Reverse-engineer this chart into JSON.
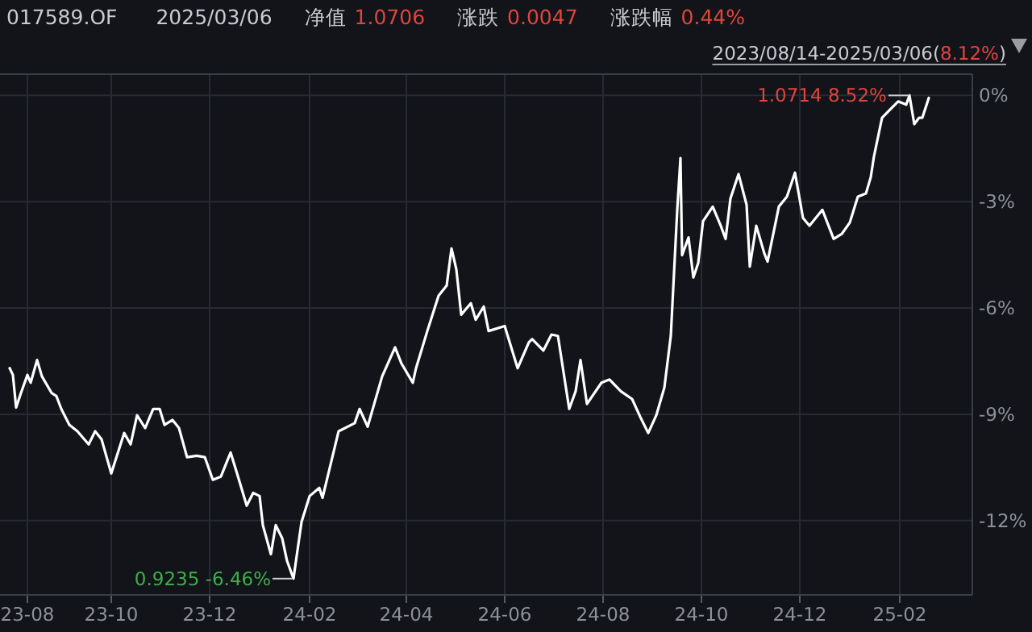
{
  "chart_data": {
    "type": "line",
    "title": "017589.OF",
    "annotations": [
      "2025/03/06",
      "净值",
      "1.0706",
      "涨跌",
      "0.0047",
      "涨跌幅",
      "0.44%",
      "2023/08/14-2025/03/06(",
      "8.12%",
      ")",
      {
        "text": "1.0714 8.52%",
        "x": "2025-02-22",
        "y": 0
      },
      {
        "text": "0.9235 -6.46%",
        "x": "2024-02-06",
        "y": -13.64
      }
    ],
    "x": [
      "2023-08-14",
      "2023-08-16",
      "2023-08-18",
      "2023-08-21",
      "2023-08-25",
      "2023-08-27",
      "2023-08-31",
      "2023-09-03",
      "2023-09-09",
      "2023-09-12",
      "2023-09-15",
      "2023-09-20",
      "2023-09-25",
      "2023-10-02",
      "2023-10-06",
      "2023-10-10",
      "2023-10-16",
      "2023-10-24",
      "2023-10-28",
      "2023-11-01",
      "2023-11-06",
      "2023-11-11",
      "2023-11-15",
      "2023-11-18",
      "2023-11-23",
      "2023-11-27",
      "2023-12-02",
      "2023-12-08",
      "2023-12-13",
      "2023-12-18",
      "2023-12-23",
      "2023-12-29",
      "2024-01-02",
      "2024-01-08",
      "2024-01-12",
      "2024-01-16",
      "2024-01-18",
      "2024-01-23",
      "2024-01-26",
      "2024-01-30",
      "2024-02-02",
      "2024-02-06",
      "2024-02-11",
      "2024-02-16",
      "2024-02-22",
      "2024-02-24",
      "2024-03-05",
      "2024-03-15",
      "2024-03-18",
      "2024-03-23",
      "2024-04-01",
      "2024-04-09",
      "2024-04-13",
      "2024-04-20",
      "2024-04-22",
      "2024-04-29",
      "2024-05-06",
      "2024-05-11",
      "2024-05-14",
      "2024-05-17",
      "2024-05-20",
      "2024-05-26",
      "2024-05-29",
      "2024-06-03",
      "2024-06-06",
      "2024-06-16",
      "2024-06-24",
      "2024-07-01",
      "2024-07-03",
      "2024-07-10",
      "2024-07-15",
      "2024-07-19",
      "2024-07-26",
      "2024-07-30",
      "2024-08-02",
      "2024-08-06",
      "2024-08-15",
      "2024-08-20",
      "2024-08-27",
      "2024-09-03",
      "2024-09-08",
      "2024-09-13",
      "2024-09-18",
      "2024-09-23",
      "2024-09-27",
      "2024-10-01",
      "2024-10-03",
      "2024-10-04",
      "2024-10-08",
      "2024-10-11",
      "2024-10-14",
      "2024-10-17",
      "2024-10-23",
      "2024-10-28",
      "2024-10-31",
      "2024-11-03",
      "2024-11-08",
      "2024-11-13",
      "2024-11-15",
      "2024-11-19",
      "2024-11-24",
      "2024-11-26",
      "2024-12-01",
      "2024-12-03",
      "2024-12-08",
      "2024-12-13",
      "2024-12-18",
      "2024-12-22",
      "2024-12-30",
      "2025-01-06",
      "2025-01-11",
      "2025-01-16",
      "2025-01-21",
      "2025-01-26",
      "2025-01-29",
      "2025-01-31",
      "2025-02-05",
      "2025-02-10",
      "2025-02-15",
      "2025-02-20",
      "2025-02-22",
      "2025-02-25",
      "2025-02-28",
      "2025-03-02",
      "2025-03-06"
    ],
    "series": [
      {
        "color": "#ffffff",
        "values": [
          -7.7,
          -7.89,
          -8.81,
          -8.4,
          -7.89,
          -8.11,
          -7.47,
          -7.93,
          -8.4,
          -8.49,
          -8.85,
          -9.3,
          -9.48,
          -9.85,
          -9.48,
          -9.71,
          -10.67,
          -9.53,
          -9.85,
          -9.03,
          -9.39,
          -8.85,
          -8.85,
          -9.3,
          -9.16,
          -9.39,
          -10.21,
          -10.17,
          -10.21,
          -10.85,
          -10.76,
          -10.08,
          -10.67,
          -11.58,
          -11.22,
          -11.31,
          -12.13,
          -12.95,
          -12.13,
          -12.5,
          -13.14,
          -13.64,
          -12.04,
          -11.31,
          -11.08,
          -11.36,
          -9.48,
          -9.25,
          -8.85,
          -9.35,
          -7.93,
          -7.11,
          -7.57,
          -8.11,
          -7.7,
          -6.65,
          -5.65,
          -5.37,
          -4.32,
          -4.91,
          -6.19,
          -5.87,
          -6.33,
          -5.96,
          -6.65,
          -6.51,
          -7.7,
          -6.97,
          -6.88,
          -7.2,
          -6.75,
          -6.79,
          -8.85,
          -8.35,
          -7.47,
          -8.71,
          -8.11,
          -8.02,
          -8.35,
          -8.57,
          -9.07,
          -9.53,
          -9.03,
          -8.25,
          -6.79,
          -3.23,
          -1.77,
          -4.51,
          -4.01,
          -5.14,
          -4.73,
          -3.55,
          -3.14,
          -3.68,
          -4.05,
          -2.91,
          -2.22,
          -3.09,
          -4.83,
          -3.68,
          -4.46,
          -4.69,
          -3.59,
          -3.14,
          -2.86,
          -2.18,
          -3.46,
          -3.68,
          -3.23,
          -4.05,
          -3.91,
          -3.59,
          -2.86,
          -2.77,
          -2.31,
          -1.72,
          -0.63,
          -0.4,
          -0.17,
          -0.26,
          0.0,
          -0.81,
          -0.63,
          -0.63,
          -0.07
        ]
      }
    ],
    "xlim": [
      "2023-08-08",
      "2025-04-02"
    ],
    "xticks": [
      {
        "value": "2023-08-25",
        "label": "23-08"
      },
      {
        "value": "2023-10-16",
        "label": "23-10"
      },
      {
        "value": "2023-12-16",
        "label": "23-12"
      },
      {
        "value": "2024-02-16",
        "label": "24-02"
      },
      {
        "value": "2024-04-16",
        "label": "24-04"
      },
      {
        "value": "2024-06-16",
        "label": "24-06"
      },
      {
        "value": "2024-08-16",
        "label": "24-08"
      },
      {
        "value": "2024-10-16",
        "label": "24-10"
      },
      {
        "value": "2024-12-16",
        "label": "24-12"
      },
      {
        "value": "2025-02-16",
        "label": "25-02"
      }
    ],
    "ylim": [
      -14.1,
      0.6
    ],
    "yticks": [
      {
        "value": 0,
        "label": "0%"
      },
      {
        "value": -3,
        "label": "-3%"
      },
      {
        "value": -6,
        "label": "-6%"
      },
      {
        "value": -9,
        "label": "-9%"
      },
      {
        "value": -12,
        "label": "-12%"
      }
    ],
    "grid": true
  }
}
